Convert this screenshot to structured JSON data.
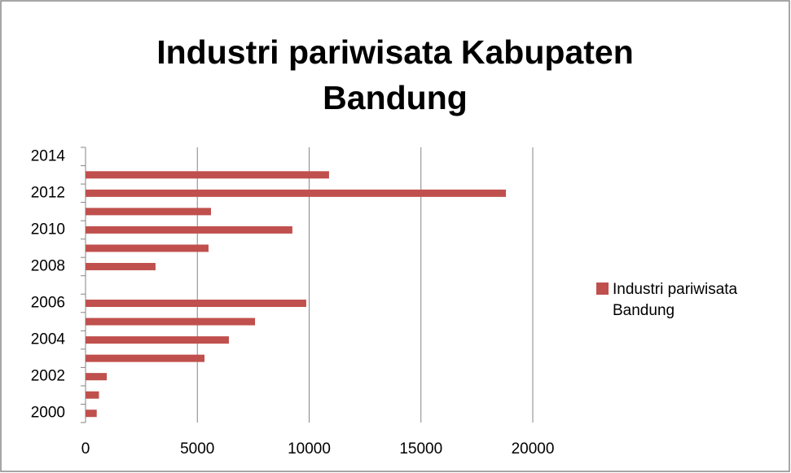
{
  "chart_data": {
    "type": "hbar",
    "title": "Industri pariwisata Kabupaten Bandung",
    "categories": [
      "2000",
      null,
      "2002",
      null,
      "2004",
      null,
      "2006",
      null,
      "2008",
      null,
      "2010",
      null,
      "2012",
      null,
      "2014"
    ],
    "series": [
      {
        "name": "Industri pariwisata Bandung",
        "color": "#c0504d",
        "values": [
          500,
          600,
          950,
          5320,
          6410,
          7580,
          9870,
          null,
          3130,
          5500,
          9250,
          5610,
          18800,
          10890,
          null
        ]
      }
    ],
    "xlim": [
      0,
      20000
    ],
    "xticks": [
      0,
      5000,
      10000,
      15000,
      20000
    ],
    "grid": true,
    "legend": "right"
  }
}
